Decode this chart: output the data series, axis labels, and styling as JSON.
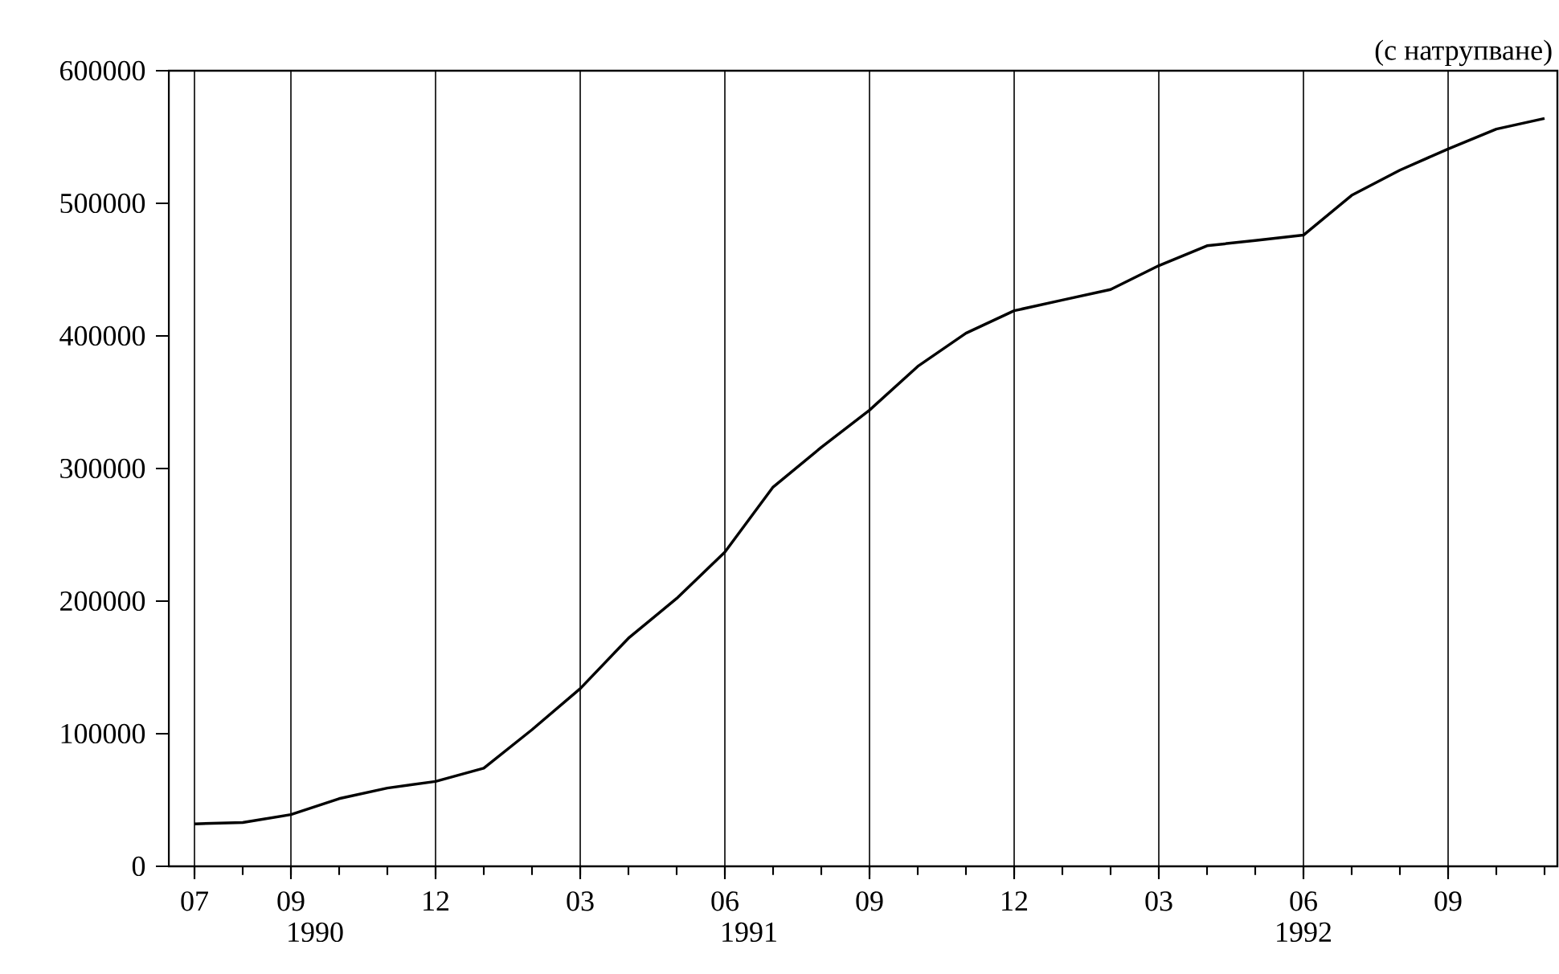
{
  "chart_data": {
    "type": "line",
    "subtitle": "(с натрупване)",
    "x": [
      "1990-07",
      "1990-08",
      "1990-09",
      "1990-10",
      "1990-11",
      "1990-12",
      "1991-01",
      "1991-02",
      "1991-03",
      "1991-04",
      "1991-05",
      "1991-06",
      "1991-07",
      "1991-08",
      "1991-09",
      "1991-10",
      "1991-11",
      "1991-12",
      "1992-01",
      "1992-02",
      "1992-03",
      "1992-04",
      "1992-05",
      "1992-06",
      "1992-07",
      "1992-08",
      "1992-09",
      "1992-10",
      "1992-11"
    ],
    "series": [
      {
        "color": "#000000",
        "values": [
          32000,
          33000,
          39000,
          51000,
          59000,
          64000,
          74000,
          103000,
          134000,
          172000,
          202000,
          237000,
          286000,
          316000,
          344000,
          377000,
          402000,
          419000,
          427000,
          435000,
          453000,
          468000,
          472000,
          476000,
          506000,
          525000,
          541000,
          556000,
          564000
        ]
      }
    ],
    "xlim": [
      "1990-06-15",
      "1992-11-09"
    ],
    "xticks": [
      {
        "value": "1990-07",
        "label": "07"
      },
      {
        "value": "1990-09",
        "label": "09"
      },
      {
        "value": "1990-12",
        "label": "12"
      },
      {
        "value": "1991-03",
        "label": "03"
      },
      {
        "value": "1991-06",
        "label": "06"
      },
      {
        "value": "1991-09",
        "label": "09"
      },
      {
        "value": "1991-12",
        "label": "12"
      },
      {
        "value": "1992-03",
        "label": "03"
      },
      {
        "value": "1992-06",
        "label": "06"
      },
      {
        "value": "1992-09",
        "label": "09"
      }
    ],
    "ylim": [
      0,
      600000
    ],
    "yticks": [
      0,
      100000,
      200000,
      300000,
      400000,
      500000,
      600000
    ],
    "annotations": [
      "1990",
      "1991",
      "1992"
    ],
    "grid": "x",
    "marker": "none",
    "line_style": "solid"
  }
}
